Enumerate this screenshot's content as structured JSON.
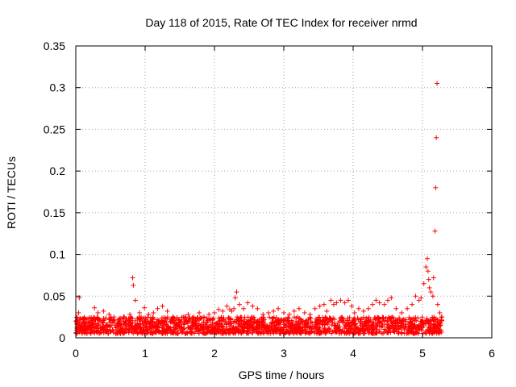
{
  "chart_data": {
    "type": "scatter",
    "title": "Day 118 of 2015, Rate Of TEC Index for receiver nrmd",
    "xlabel": "GPS time / hours",
    "ylabel": "ROTI / TECUs",
    "xlim": [
      0,
      6
    ],
    "ylim": [
      0,
      0.35
    ],
    "xticks": [
      0,
      1,
      2,
      3,
      4,
      5,
      6
    ],
    "xtick_labels": [
      "0",
      "1",
      "2",
      "3",
      "4",
      "5",
      "6"
    ],
    "yticks": [
      0,
      0.05,
      0.1,
      0.15,
      0.2,
      0.25,
      0.3,
      0.35
    ],
    "ytick_labels": [
      "0",
      "0.05",
      "0.1",
      "0.15",
      "0.2",
      "0.25",
      "0.3",
      "0.35"
    ],
    "grid": true,
    "marker": "+",
    "series": [
      {
        "name": "ROTI",
        "color": "#ff0000",
        "x": [
          0.0,
          0.02,
          0.04,
          0.05,
          0.06,
          0.27,
          0.32,
          0.4,
          0.48,
          0.55,
          0.62,
          0.7,
          0.78,
          0.82,
          0.83,
          0.86,
          0.92,
          0.99,
          1.05,
          1.12,
          1.18,
          1.25,
          1.32,
          1.4,
          1.48,
          1.55,
          1.62,
          1.7,
          1.78,
          1.85,
          1.92,
          2.0,
          2.06,
          2.12,
          2.18,
          2.22,
          2.25,
          2.28,
          2.3,
          2.32,
          2.36,
          2.42,
          2.48,
          2.55,
          2.62,
          2.7,
          2.78,
          2.85,
          2.92,
          3.0,
          3.08,
          3.15,
          3.22,
          3.3,
          3.38,
          3.45,
          3.52,
          3.58,
          3.62,
          3.68,
          3.72,
          3.76,
          3.82,
          3.88,
          3.93,
          3.98,
          4.02,
          4.08,
          4.15,
          4.22,
          4.28,
          4.33,
          4.38,
          4.45,
          4.5,
          4.55,
          4.62,
          4.7,
          4.78,
          4.85,
          4.9,
          4.95,
          4.98,
          5.02,
          5.05,
          5.07,
          5.08,
          5.09,
          5.1,
          5.12,
          5.15,
          5.16,
          5.18,
          5.19,
          5.2,
          5.21,
          5.22,
          5.25,
          5.28
        ],
        "y": [
          0.02,
          0.016,
          0.03,
          0.048,
          0.015,
          0.036,
          0.03,
          0.032,
          0.028,
          0.025,
          0.022,
          0.025,
          0.028,
          0.072,
          0.063,
          0.045,
          0.03,
          0.036,
          0.028,
          0.03,
          0.035,
          0.038,
          0.032,
          0.025,
          0.022,
          0.025,
          0.028,
          0.025,
          0.03,
          0.025,
          0.028,
          0.03,
          0.034,
          0.032,
          0.038,
          0.034,
          0.032,
          0.035,
          0.048,
          0.055,
          0.04,
          0.035,
          0.042,
          0.038,
          0.035,
          0.028,
          0.03,
          0.032,
          0.035,
          0.03,
          0.028,
          0.032,
          0.035,
          0.03,
          0.028,
          0.035,
          0.038,
          0.04,
          0.032,
          0.045,
          0.04,
          0.042,
          0.045,
          0.042,
          0.045,
          0.038,
          0.03,
          0.035,
          0.032,
          0.035,
          0.04,
          0.045,
          0.042,
          0.04,
          0.045,
          0.048,
          0.035,
          0.03,
          0.035,
          0.04,
          0.05,
          0.045,
          0.048,
          0.065,
          0.085,
          0.095,
          0.08,
          0.07,
          0.06,
          0.055,
          0.05,
          0.072,
          0.128,
          0.18,
          0.24,
          0.305,
          0.04,
          0.03,
          0.025
        ],
        "band": {
          "description": "dense low-level background noise",
          "x_range": [
            0.0,
            5.28
          ],
          "y_range": [
            0.005,
            0.025
          ]
        }
      }
    ]
  }
}
